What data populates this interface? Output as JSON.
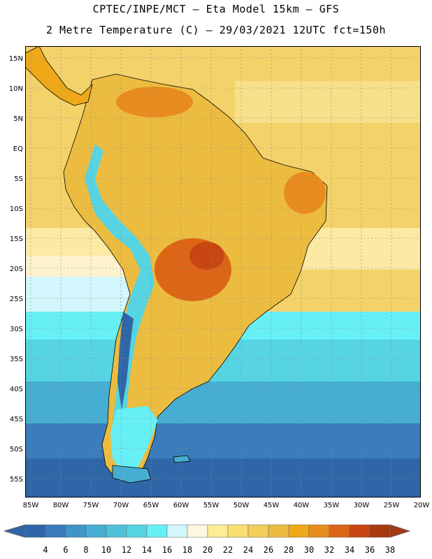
{
  "header": {
    "line1": "CPTEC/INPE/MCT –  Eta Model 15km – GFS",
    "line2": "2 Metre Temperature (C) – 29/03/2021 12UTC fct=150h"
  },
  "map": {
    "lat_labels": [
      "15N",
      "10N",
      "5N",
      "EQ",
      "5S",
      "10S",
      "15S",
      "20S",
      "25S",
      "30S",
      "35S",
      "40S",
      "45S",
      "50S",
      "55S"
    ],
    "lon_labels": [
      "85W",
      "80W",
      "75W",
      "70W",
      "65W",
      "60W",
      "55W",
      "50W",
      "45W",
      "40W",
      "35W",
      "30W",
      "25W",
      "20W"
    ],
    "region": "South America"
  },
  "legend": {
    "values": [
      "4",
      "6",
      "8",
      "10",
      "12",
      "14",
      "16",
      "18",
      "20",
      "22",
      "24",
      "26",
      "28",
      "30",
      "32",
      "34",
      "36",
      "38"
    ],
    "colors": [
      "#2f66a8",
      "#3a7cbc",
      "#3f95c6",
      "#46aed2",
      "#4ec2d9",
      "#56d4e2",
      "#66f0f6",
      "#d2f6fb",
      "#fff6e0",
      "#fcec94",
      "#f9df72",
      "#f2ce5a",
      "#ecbc40",
      "#eea818",
      "#e88c1f",
      "#dc6616",
      "#c84612",
      "#a8380f"
    ]
  }
}
